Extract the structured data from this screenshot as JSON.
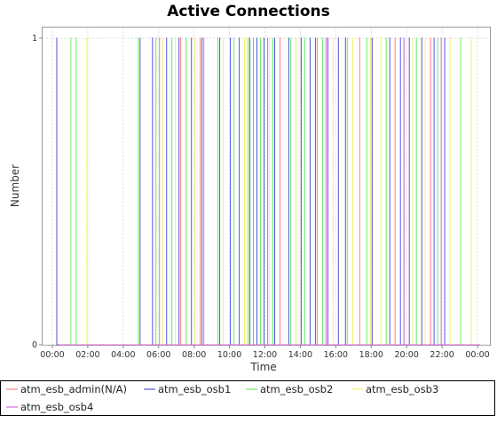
{
  "chart_data": {
    "type": "line",
    "title": "Active Connections",
    "xlabel": "Time",
    "ylabel": "Number",
    "x_ticks": [
      "00:00",
      "02:00",
      "04:00",
      "06:00",
      "08:00",
      "10:00",
      "12:00",
      "14:00",
      "16:00",
      "18:00",
      "20:00",
      "22:00",
      "00:00"
    ],
    "x_range_hours": [
      -0.55,
      24.7
    ],
    "y_ticks": [
      "0",
      "1"
    ],
    "ylim": [
      0,
      1
    ],
    "grid": true,
    "legend_position": "bottom",
    "series": [
      {
        "name": "atm_esb_admin(N/A)",
        "color": "#ff8080",
        "x_hours": [
          6.05,
          7.25,
          8.35,
          11.35,
          12.85,
          14.95,
          17.35,
          19.35,
          21.35
        ]
      },
      {
        "name": "atm_esb_osb1",
        "color": "#5555dd",
        "x_hours": [
          0.25,
          4.95,
          5.65,
          6.45,
          7.15,
          7.85,
          8.45,
          9.45,
          10.05,
          10.55,
          11.15,
          11.55,
          11.95,
          12.55,
          13.35,
          14.05,
          14.55,
          14.85,
          15.55,
          16.15,
          16.55,
          18.05,
          19.05,
          19.65,
          20.15,
          20.85,
          21.55,
          22.15
        ]
      },
      {
        "name": "atm_esb_osb2",
        "color": "#66ee66",
        "x_hours": [
          1.05,
          1.35,
          4.85,
          5.85,
          6.75,
          7.55,
          9.35,
          10.25,
          11.05,
          11.75,
          12.45,
          13.45,
          14.25,
          15.25,
          16.65,
          17.75,
          18.85,
          19.85,
          20.55,
          21.75,
          23.05
        ]
      },
      {
        "name": "atm_esb_osb3",
        "color": "#f2f266",
        "x_hours": [
          1.95,
          6.25,
          6.95,
          8.05,
          9.65,
          10.85,
          12.25,
          13.75,
          15.85,
          16.95,
          17.95,
          18.55,
          20.35,
          21.05,
          22.45,
          23.65
        ]
      },
      {
        "name": "atm_esb_osb4",
        "color": "#dd66dd",
        "x_hours": [
          8.55,
          12.15,
          15.45,
          19.85,
          21.95
        ]
      }
    ]
  }
}
